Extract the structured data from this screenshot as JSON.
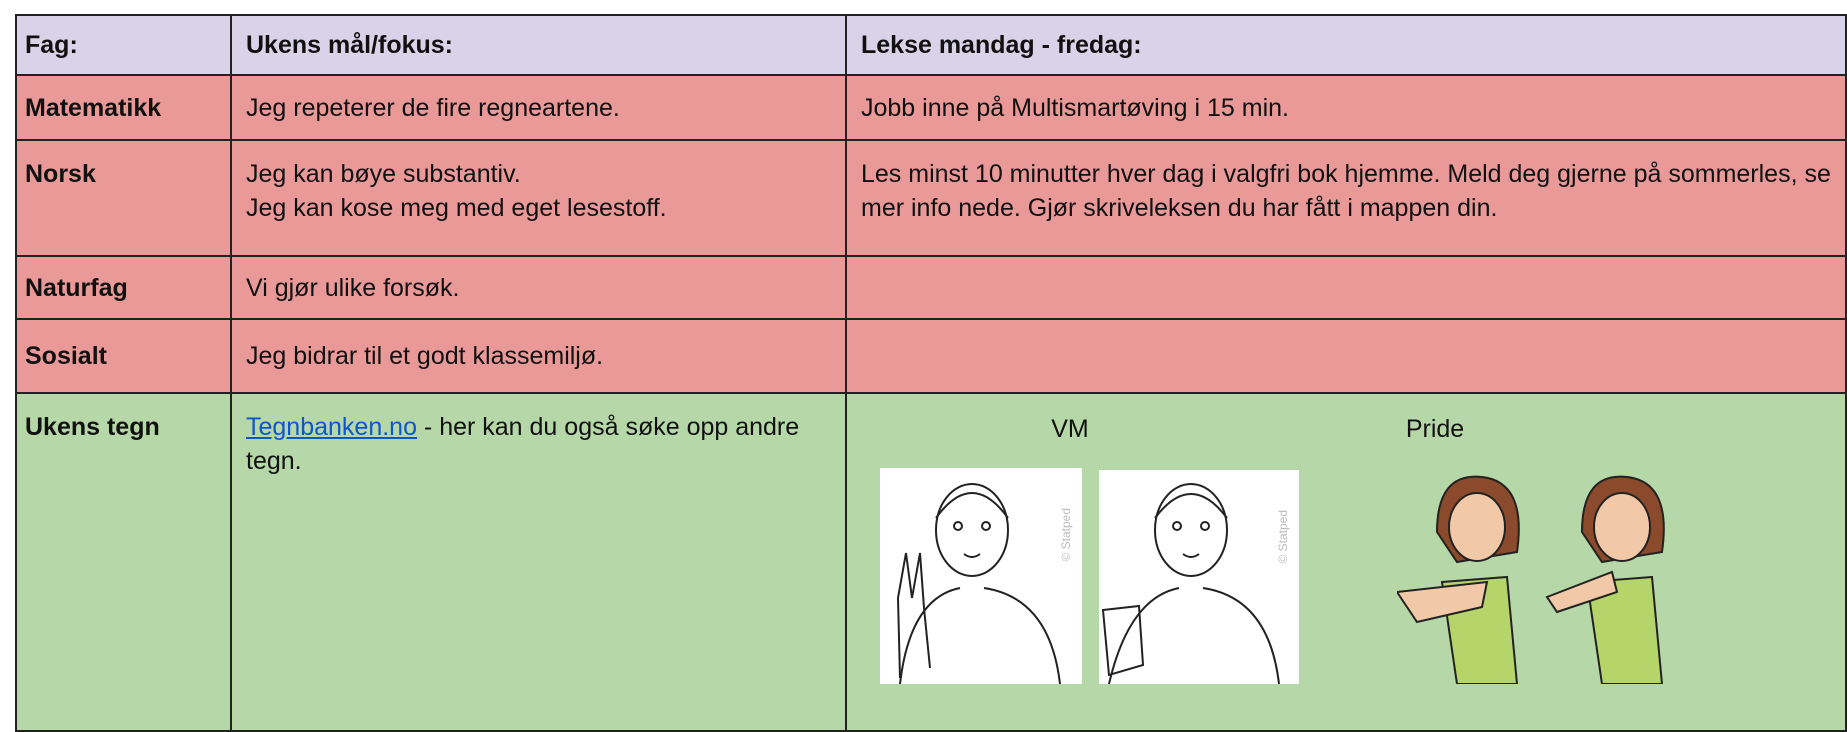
{
  "table": {
    "header": [
      "Fag:",
      "Ukens mål/fokus:",
      "Lekse mandag - fredag:"
    ],
    "rows": [
      {
        "subject": "Matematikk",
        "goal": [
          "Jeg repeterer de fire regneartene."
        ],
        "homework": "Jobb inne på Multismartøving i 15 min."
      },
      {
        "subject": "Norsk",
        "goal": [
          "Jeg kan bøye substantiv.",
          "Jeg kan kose meg med eget lesestoff."
        ],
        "homework": "Les minst 10 minutter hver dag i valgfri bok hjemme. Meld deg gjerne på sommerles, se mer info nede. Gjør skriveleksen du har fått i mappen din."
      },
      {
        "subject": "Naturfag",
        "goal": [
          "Vi gjør ulike forsøk."
        ],
        "homework": ""
      },
      {
        "subject": "Sosialt",
        "goal": [
          " Jeg bidrar til et godt klassemiljø."
        ],
        "homework": ""
      }
    ],
    "sign_row": {
      "subject": "Ukens tegn",
      "link": "Tegnbanken.no",
      "link_text": " - her kan du også søke opp andre tegn.",
      "signs": [
        "VM",
        "Pride"
      ],
      "watermark": "© Statped"
    }
  }
}
